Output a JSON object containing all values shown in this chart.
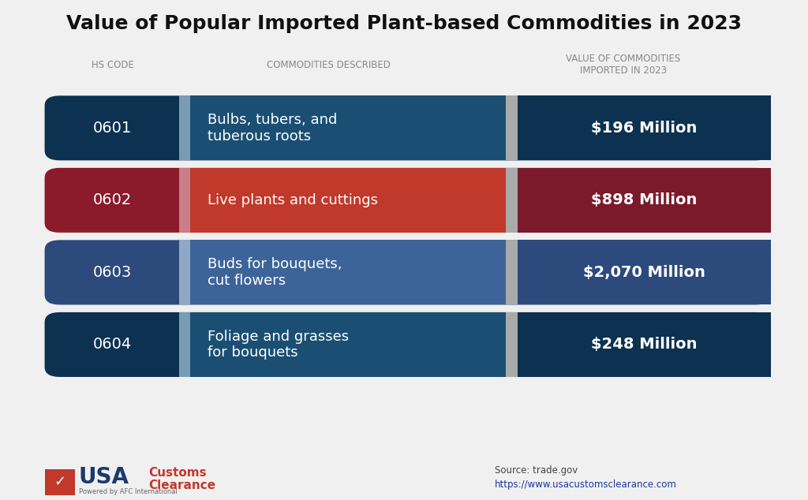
{
  "title": "Value of Popular Imported Plant-based Commodities in 2023",
  "col_headers": [
    "HS CODE",
    "COMMODITIES DESCRIBED",
    "VALUE OF COMMODITIES\nIMPORTED IN 2023"
  ],
  "rows": [
    {
      "hs_code": "0601",
      "description": "Bulbs, tubers, and\ntuberous roots",
      "value": "$196 Million",
      "code_bg": "#0d3150",
      "desc_bg": "#1a4f73",
      "value_bg": "#0d3150",
      "text_color": "#ffffff",
      "accent_color": "#7a9bb5"
    },
    {
      "hs_code": "0602",
      "description": "Live plants and cuttings",
      "value": "$898 Million",
      "code_bg": "#8b1a2a",
      "desc_bg": "#c0392b",
      "value_bg": "#7b1a2a",
      "text_color": "#ffffff",
      "accent_color": "#c97f8a"
    },
    {
      "hs_code": "0603",
      "description": "Buds for bouquets,\ncut flowers",
      "value": "$2,070 Million",
      "code_bg": "#2c4a7c",
      "desc_bg": "#3d6499",
      "value_bg": "#2c4a7c",
      "text_color": "#ffffff",
      "accent_color": "#8fa8c8"
    },
    {
      "hs_code": "0604",
      "description": "Foliage and grasses\nfor bouquets",
      "value": "$248 Million",
      "code_bg": "#0d3150",
      "desc_bg": "#1a4f73",
      "value_bg": "#0d3150",
      "text_color": "#ffffff",
      "accent_color": "#7a9bb5"
    }
  ],
  "bg_color": "#f0f0f0",
  "header_color": "#888888",
  "source_text": "Source: trade.gov",
  "url_text": "https://www.usacustomsclearance.com",
  "logo_usa_color": "#1a3a6e",
  "logo_customs_color": "#c0392b",
  "divider_color": "#aaaaaa"
}
